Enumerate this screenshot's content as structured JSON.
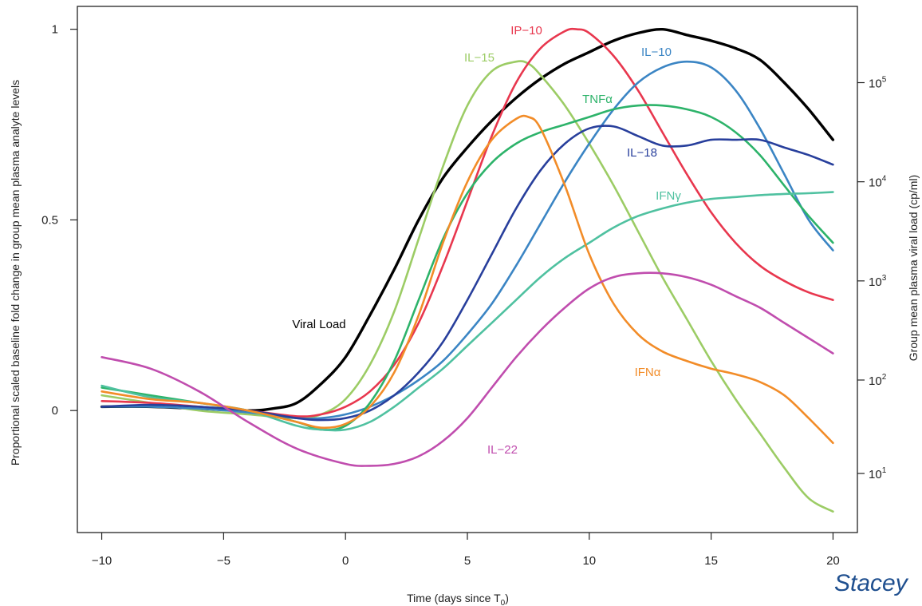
{
  "chart_data": {
    "type": "line",
    "title": "",
    "xlabel": "Time (days since T",
    "xlabel_sub": "0",
    "xlabel_end": ")",
    "ylabel": "Proportional scaled baseline fold change in group mean plasma analyte levels",
    "ylabel_right": "Group mean plasma viral load (cp/ml)",
    "xlim": [
      -11,
      21
    ],
    "ylim": [
      -0.32,
      1.06
    ],
    "x_ticks": [
      -10,
      -5,
      0,
      5,
      10,
      15,
      20
    ],
    "x_tick_labels": [
      "−10",
      "−5",
      "0",
      "5",
      "10",
      "15",
      "20"
    ],
    "y_ticks": [
      0,
      0.5,
      1
    ],
    "y_tick_labels": [
      "0",
      "0.5",
      "1"
    ],
    "y2_scale": "log",
    "y2_ticks": [
      {
        "base": "10",
        "exp": "1",
        "left_value": -0.165
      },
      {
        "base": "10",
        "exp": "2",
        "left_value": 0.08
      },
      {
        "base": "10",
        "exp": "3",
        "left_value": 0.34
      },
      {
        "base": "10",
        "exp": "4",
        "left_value": 0.6
      },
      {
        "base": "10",
        "exp": "5",
        "left_value": 0.86
      }
    ],
    "grid": false,
    "series": [
      {
        "name": "Viral Load",
        "color": "#000000",
        "x": [
          -10,
          -8,
          -6,
          -4,
          -3,
          -2,
          -1,
          0,
          1,
          2,
          3,
          4,
          5,
          6,
          7,
          8,
          9,
          10,
          11,
          12,
          13,
          14,
          15,
          16,
          17,
          18,
          19,
          20
        ],
        "y": [
          0.01,
          0.01,
          0.005,
          0.0,
          0.005,
          0.02,
          0.07,
          0.14,
          0.25,
          0.37,
          0.5,
          0.61,
          0.69,
          0.76,
          0.82,
          0.87,
          0.91,
          0.94,
          0.97,
          0.99,
          1.0,
          0.985,
          0.97,
          0.95,
          0.92,
          0.86,
          0.79,
          0.71
        ]
      },
      {
        "name": "IL−15",
        "color": "#9ccc65",
        "x": [
          -10,
          -8,
          -6,
          -4,
          -2,
          -1,
          0,
          1,
          2,
          3,
          4,
          5,
          6,
          7,
          7.5,
          8,
          9,
          10,
          11,
          12,
          13,
          14,
          15,
          16,
          17,
          18,
          19,
          20
        ],
        "y": [
          0.04,
          0.02,
          0.0,
          -0.01,
          -0.02,
          -0.01,
          0.03,
          0.12,
          0.26,
          0.45,
          0.64,
          0.8,
          0.89,
          0.915,
          0.91,
          0.88,
          0.8,
          0.7,
          0.59,
          0.47,
          0.35,
          0.24,
          0.13,
          0.03,
          -0.06,
          -0.15,
          -0.23,
          -0.265
        ]
      },
      {
        "name": "IP−10",
        "color": "#e8374e",
        "x": [
          -10,
          -8,
          -6,
          -4,
          -2,
          -1,
          0,
          1,
          2,
          3,
          4,
          5,
          6,
          7,
          8,
          9,
          9.5,
          10,
          11,
          12,
          13,
          14,
          15,
          16,
          17,
          18,
          19,
          20
        ],
        "y": [
          0.025,
          0.02,
          0.01,
          0.0,
          -0.015,
          -0.01,
          0.01,
          0.05,
          0.12,
          0.23,
          0.38,
          0.55,
          0.72,
          0.86,
          0.95,
          0.995,
          1.0,
          0.99,
          0.93,
          0.84,
          0.73,
          0.62,
          0.52,
          0.44,
          0.38,
          0.34,
          0.31,
          0.29
        ]
      },
      {
        "name": "IL−10",
        "color": "#3b85c4",
        "x": [
          -10,
          -8,
          -6,
          -4,
          -2,
          -1,
          0,
          1,
          2,
          3,
          4,
          5,
          6,
          7,
          8,
          9,
          10,
          11,
          12,
          13,
          14,
          15,
          16,
          17,
          18,
          19,
          20
        ],
        "y": [
          0.01,
          0.01,
          0.005,
          -0.005,
          -0.02,
          -0.02,
          -0.01,
          0.01,
          0.04,
          0.08,
          0.13,
          0.2,
          0.28,
          0.38,
          0.49,
          0.6,
          0.7,
          0.79,
          0.86,
          0.9,
          0.915,
          0.9,
          0.84,
          0.74,
          0.62,
          0.5,
          0.42
        ]
      },
      {
        "name": "TNFα",
        "color": "#2db36a",
        "x": [
          -10,
          -8,
          -6,
          -4,
          -2,
          -1,
          0,
          1,
          2,
          3,
          4,
          5,
          6,
          7,
          8,
          9,
          10,
          11,
          12,
          13,
          14,
          15,
          16,
          17,
          18,
          19,
          20
        ],
        "y": [
          0.06,
          0.04,
          0.02,
          0.0,
          -0.03,
          -0.05,
          -0.04,
          0.02,
          0.13,
          0.29,
          0.45,
          0.57,
          0.65,
          0.7,
          0.73,
          0.75,
          0.77,
          0.79,
          0.8,
          0.8,
          0.79,
          0.77,
          0.73,
          0.67,
          0.59,
          0.51,
          0.44
        ]
      },
      {
        "name": "IL−18",
        "color": "#283f9c",
        "x": [
          -10,
          -8,
          -6,
          -4,
          -2,
          -1,
          0,
          1,
          2,
          3,
          4,
          5,
          6,
          7,
          8,
          9,
          10,
          11,
          12,
          13,
          14,
          15,
          16,
          17,
          18,
          19,
          20
        ],
        "y": [
          0.01,
          0.015,
          0.01,
          0.0,
          -0.02,
          -0.025,
          -0.02,
          0.0,
          0.04,
          0.1,
          0.18,
          0.29,
          0.41,
          0.53,
          0.63,
          0.7,
          0.74,
          0.745,
          0.72,
          0.695,
          0.695,
          0.71,
          0.71,
          0.71,
          0.69,
          0.67,
          0.645
        ]
      },
      {
        "name": "IFNγ",
        "color": "#4fc1a0",
        "x": [
          -10,
          -8,
          -6,
          -4,
          -2,
          -1,
          0,
          1,
          2,
          3,
          4,
          5,
          6,
          7,
          8,
          9,
          10,
          11,
          12,
          13,
          14,
          15,
          16,
          17,
          18,
          19,
          20
        ],
        "y": [
          0.065,
          0.035,
          0.02,
          0.0,
          -0.04,
          -0.05,
          -0.05,
          -0.03,
          0.01,
          0.06,
          0.11,
          0.17,
          0.23,
          0.29,
          0.35,
          0.4,
          0.44,
          0.48,
          0.51,
          0.53,
          0.545,
          0.555,
          0.56,
          0.565,
          0.568,
          0.57,
          0.573
        ]
      },
      {
        "name": "IFNα",
        "color": "#f28c28",
        "x": [
          -10,
          -8,
          -6,
          -4,
          -2,
          -1,
          0,
          1,
          2,
          3,
          4,
          5,
          6,
          7,
          7.5,
          8,
          9,
          10,
          11,
          12,
          13,
          14,
          15,
          16,
          17,
          18,
          19,
          20
        ],
        "y": [
          0.05,
          0.03,
          0.02,
          0.0,
          -0.03,
          -0.045,
          -0.035,
          0.01,
          0.1,
          0.25,
          0.44,
          0.6,
          0.71,
          0.765,
          0.77,
          0.74,
          0.59,
          0.41,
          0.28,
          0.2,
          0.155,
          0.13,
          0.11,
          0.095,
          0.075,
          0.04,
          -0.02,
          -0.085
        ]
      },
      {
        "name": "IL−22",
        "color": "#c04dae",
        "x": [
          -10,
          -8,
          -6,
          -4,
          -2,
          0,
          1,
          2,
          3,
          4,
          5,
          6,
          7,
          8,
          9,
          10,
          11,
          12,
          13,
          14,
          15,
          16,
          17,
          18,
          19,
          20
        ],
        "y": [
          0.14,
          0.11,
          0.05,
          -0.03,
          -0.1,
          -0.14,
          -0.145,
          -0.14,
          -0.12,
          -0.08,
          -0.02,
          0.06,
          0.14,
          0.21,
          0.27,
          0.32,
          0.35,
          0.36,
          0.36,
          0.35,
          0.33,
          0.3,
          0.27,
          0.23,
          0.19,
          0.15
        ]
      }
    ],
    "annotations": [
      {
        "series": "Viral Load",
        "text": "Viral Load",
        "color": "#000000"
      },
      {
        "series": "IL−15",
        "text": "IL−15",
        "color": "#9ccc65"
      },
      {
        "series": "IP−10",
        "text": "IP−10",
        "color": "#e8374e"
      },
      {
        "series": "IL−10",
        "text": "IL−10",
        "color": "#3b85c4"
      },
      {
        "series": "TNFα",
        "text": "TNFα",
        "color": "#2db36a"
      },
      {
        "series": "IL−18",
        "text": "IL−18",
        "color": "#283f9c"
      },
      {
        "series": "IFNγ",
        "text": "IFNγ",
        "color": "#4fc1a0"
      },
      {
        "series": "IFNα",
        "text": "IFNα",
        "color": "#f28c28"
      },
      {
        "series": "IL−22",
        "text": "IL−22",
        "color": "#c04dae"
      }
    ]
  },
  "credit": "Stacey"
}
